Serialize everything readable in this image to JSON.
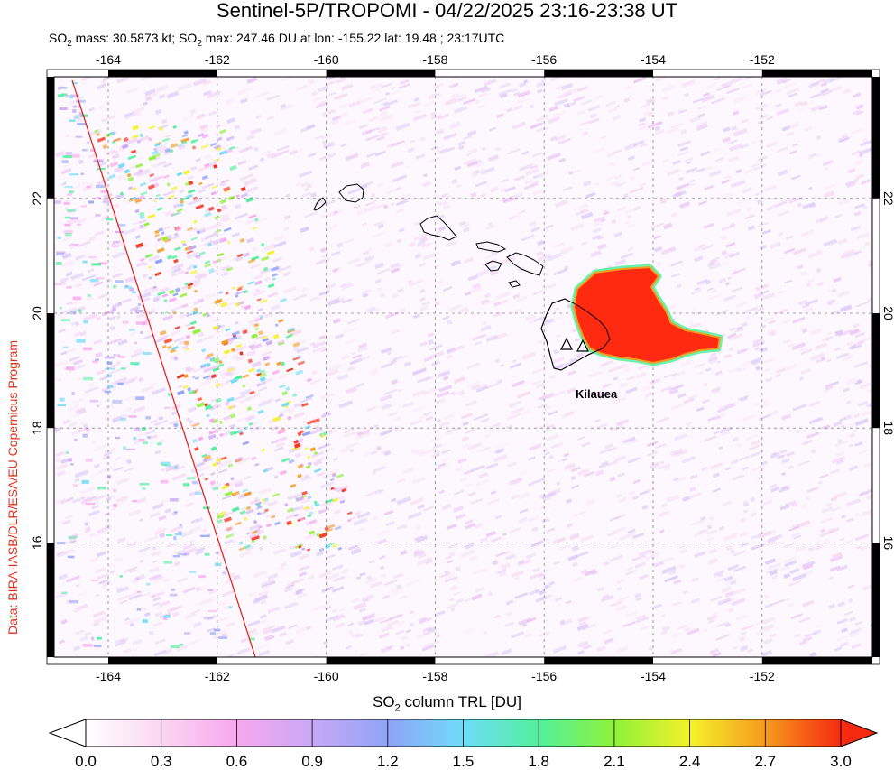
{
  "title": "Sentinel-5P/TROPOMI - 04/22/2025 23:16-23:38 UT",
  "subtitle": {
    "prefix": "SO",
    "sub": "2",
    "mass_text": " mass: 30.5873 kt; SO",
    "sub2": "2",
    "max_text": " max: 247.46 DU at lon: -155.22 lat: 19.48 ; 23:17UTC"
  },
  "credit": "Data: BIRA-IASB/DLR/ESA/EU Copernicus Program",
  "volcano_label": "Kilauea",
  "map": {
    "lon_range": [
      -165,
      -150
    ],
    "lat_range": [
      14,
      24
    ],
    "x_ticks": [
      -164,
      -162,
      -160,
      -158,
      -156,
      -154,
      -152
    ],
    "y_ticks": [
      16,
      18,
      20,
      22
    ],
    "x_tick_labels": [
      "-164",
      "-162",
      "-160",
      "-158",
      "-156",
      "-154",
      "-152"
    ],
    "y_tick_labels": [
      "16",
      "18",
      "20",
      "22"
    ]
  },
  "colorbar": {
    "label_prefix": "SO",
    "label_sub": "2",
    "label_suffix": " column TRL [DU]",
    "ticks": [
      "0.0",
      "0.3",
      "0.6",
      "0.9",
      "1.2",
      "1.5",
      "1.8",
      "2.1",
      "2.4",
      "2.7",
      "3.0"
    ],
    "colors": [
      "#ffffff",
      "#fbd6f3",
      "#f7a8ee",
      "#c9a8f5",
      "#8fa4f8",
      "#6fdcf8",
      "#52f09c",
      "#8ef23a",
      "#f5f22a",
      "#f59a1e",
      "#f52a10"
    ]
  },
  "colors": {
    "plume": "#ff2a10",
    "track_line": "#e01a10",
    "credit_text": "#e0301e"
  }
}
